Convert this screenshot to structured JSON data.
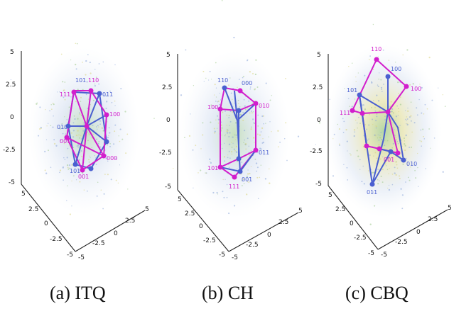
{
  "panels": [
    {
      "id": "a",
      "caption": "(a) ITQ",
      "axis_ticks": {
        "z": [
          "5",
          "2.5",
          "0",
          "-2.5",
          "-5"
        ],
        "x": [
          "-5",
          "-2.5",
          "0",
          "2.5",
          "5"
        ],
        "y": [
          "-5",
          "-2.5",
          "0",
          "2.5",
          "5"
        ]
      },
      "vertex_labels": [
        {
          "text": "101",
          "color": "#4a5fd0"
        },
        {
          "text": "110",
          "color": "#d21ecc"
        },
        {
          "text": "111",
          "color": "#d21ecc"
        },
        {
          "text": "011",
          "color": "#4a5fd0"
        },
        {
          "text": "100",
          "color": "#d21ecc"
        },
        {
          "text": "010",
          "color": "#4a5fd0"
        },
        {
          "text": "001",
          "color": "#d21ecc"
        },
        {
          "text": "000",
          "color": "#d21ecc"
        },
        {
          "text": "101",
          "color": "#4a5fd0"
        },
        {
          "text": "001",
          "color": "#d21ecc"
        }
      ]
    },
    {
      "id": "b",
      "caption": "(b) CH",
      "axis_ticks": {
        "z": [
          "5",
          "2.5",
          "0",
          "-2.5",
          "-5"
        ],
        "x": [
          "-5",
          "-2.5",
          "0",
          "2.5",
          "5"
        ],
        "y": [
          "-5",
          "-2.5",
          "0",
          "2.5",
          "5"
        ]
      },
      "vertex_labels": [
        {
          "text": "110",
          "color": "#4a5fd0"
        },
        {
          "text": "100",
          "color": "#d21ecc"
        },
        {
          "text": "000",
          "color": "#4a5fd0"
        },
        {
          "text": "010",
          "color": "#d21ecc"
        },
        {
          "text": "101",
          "color": "#d21ecc"
        },
        {
          "text": "011",
          "color": "#4a5fd0"
        },
        {
          "text": "001",
          "color": "#4a5fd0"
        },
        {
          "text": "111",
          "color": "#d21ecc"
        }
      ]
    },
    {
      "id": "c",
      "caption": "(c) CBQ",
      "axis_ticks": {
        "z": [
          "5",
          "2.5",
          "0",
          "-2.5",
          "-5"
        ],
        "x": [
          "-5",
          "-2.5",
          "0",
          "2.5",
          "5"
        ],
        "y": [
          "-5",
          "-2.5",
          "0",
          "2.5",
          "5"
        ]
      },
      "vertex_labels": [
        {
          "text": "110",
          "color": "#d21ecc"
        },
        {
          "text": "100",
          "color": "#4a5fd0"
        },
        {
          "text": "101",
          "color": "#4a5fd0"
        },
        {
          "text": "100",
          "color": "#d21ecc"
        },
        {
          "text": "111",
          "color": "#d21ecc"
        },
        {
          "text": "001",
          "color": "#d21ecc"
        },
        {
          "text": "010",
          "color": "#4a5fd0"
        },
        {
          "text": "011",
          "color": "#4a5fd0"
        }
      ]
    }
  ],
  "colors": {
    "magenta": "#d21ecc",
    "blue": "#4a5fd0",
    "scatter_blue": "#8aa6d8",
    "scatter_green": "#9cc98a",
    "scatter_yellow": "#d8d27a"
  }
}
